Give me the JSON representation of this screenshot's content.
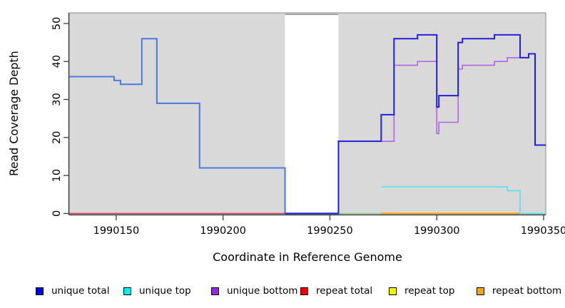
{
  "chart_data": {
    "type": "line",
    "subtype": "step-coverage",
    "title": "",
    "xlabel": "Coordinate in Reference Genome",
    "ylabel": "Read Coverage Depth",
    "xlim": [
      1990128,
      1990351
    ],
    "ylim": [
      -0.3,
      52.8
    ],
    "grid": false,
    "plot_bg": "#d9d9d9",
    "box_color": "#8a8a8a",
    "axis_color": "#3c3c3c",
    "masked_region": {
      "start": 1990229,
      "end": 1990254,
      "color": "#ffffff",
      "top_edge_color": "#8f8f8f"
    },
    "x_ticks": [
      {
        "v": 1990150,
        "label": "1990150"
      },
      {
        "v": 1990200,
        "label": "1990200"
      },
      {
        "v": 1990250,
        "label": "1990250"
      },
      {
        "v": 1990300,
        "label": "1990300"
      },
      {
        "v": 1990350,
        "label": "1990350"
      }
    ],
    "y_ticks": [
      {
        "v": 0,
        "label": "0"
      },
      {
        "v": 10,
        "label": "10"
      },
      {
        "v": 20,
        "label": "20"
      },
      {
        "v": 30,
        "label": "30"
      },
      {
        "v": 40,
        "label": "40"
      },
      {
        "v": 50,
        "label": "50"
      }
    ],
    "series": [
      {
        "name": "baseline (unlabeled, pale green)",
        "color": "#94d494",
        "width": 1.6,
        "runs": [
          [
            1990254,
            1990351,
            0
          ]
        ]
      },
      {
        "name": "repeat total",
        "color": "#dc3a5a",
        "width": 1.6,
        "runs": [
          [
            1990128,
            1990229,
            0
          ]
        ]
      },
      {
        "name": "repeat bottom",
        "color": "#ff9e00",
        "width": 2,
        "runs": [
          [
            1990274,
            1990339,
            0
          ]
        ]
      },
      {
        "name": "unique top",
        "color": "#55e3e6",
        "width": 1.6,
        "runs": [
          [
            1990274,
            1990333,
            7
          ],
          [
            1990333,
            1990339,
            6
          ],
          [
            1990339,
            1990351,
            0
          ]
        ]
      },
      {
        "name": "unique total (left unique segment)",
        "color": "#4b79e4",
        "width": 2,
        "runs": [
          [
            1990128,
            1990149,
            36
          ],
          [
            1990149,
            1990152,
            35
          ],
          [
            1990152,
            1990162,
            34
          ],
          [
            1990162,
            1990169,
            46
          ],
          [
            1990169,
            1990189,
            29
          ],
          [
            1990189,
            1990229,
            12
          ],
          [
            1990229,
            1990254,
            0
          ]
        ]
      },
      {
        "name": "unique bottom",
        "color": "#ad68e0",
        "width": 1.6,
        "runs": [
          [
            1990229,
            1990254,
            0
          ],
          [
            1990254,
            1990280,
            19
          ],
          [
            1990280,
            1990291,
            39
          ],
          [
            1990291,
            1990300,
            40
          ],
          [
            1990300,
            1990301,
            21
          ],
          [
            1990301,
            1990310,
            24
          ],
          [
            1990310,
            1990312,
            38
          ],
          [
            1990312,
            1990327,
            39
          ],
          [
            1990327,
            1990333,
            40
          ],
          [
            1990333,
            1990343,
            41
          ],
          [
            1990343,
            1990346,
            42
          ],
          [
            1990346,
            1990351,
            18
          ]
        ]
      },
      {
        "name": "unique total",
        "color": "#2121d6",
        "width": 2,
        "runs": [
          [
            1990229,
            1990254,
            0
          ],
          [
            1990254,
            1990274,
            19
          ],
          [
            1990274,
            1990280,
            26
          ],
          [
            1990280,
            1990291,
            46
          ],
          [
            1990291,
            1990300,
            47
          ],
          [
            1990300,
            1990301,
            28
          ],
          [
            1990301,
            1990310,
            31
          ],
          [
            1990310,
            1990312,
            45
          ],
          [
            1990312,
            1990327,
            46
          ],
          [
            1990327,
            1990339,
            47
          ],
          [
            1990339,
            1990343,
            41
          ],
          [
            1990343,
            1990346,
            42
          ],
          [
            1990346,
            1990351,
            18
          ]
        ]
      }
    ],
    "legend_position": "bottom",
    "legend": [
      {
        "label": "unique total",
        "color": "#0000ee"
      },
      {
        "label": "unique top",
        "color": "#00eded"
      },
      {
        "label": "unique bottom",
        "color": "#a020f0"
      },
      {
        "label": "repeat total",
        "color": "#ee0000"
      },
      {
        "label": "repeat top",
        "color": "#f5f500"
      },
      {
        "label": "repeat bottom",
        "color": "#ffa500"
      }
    ]
  }
}
